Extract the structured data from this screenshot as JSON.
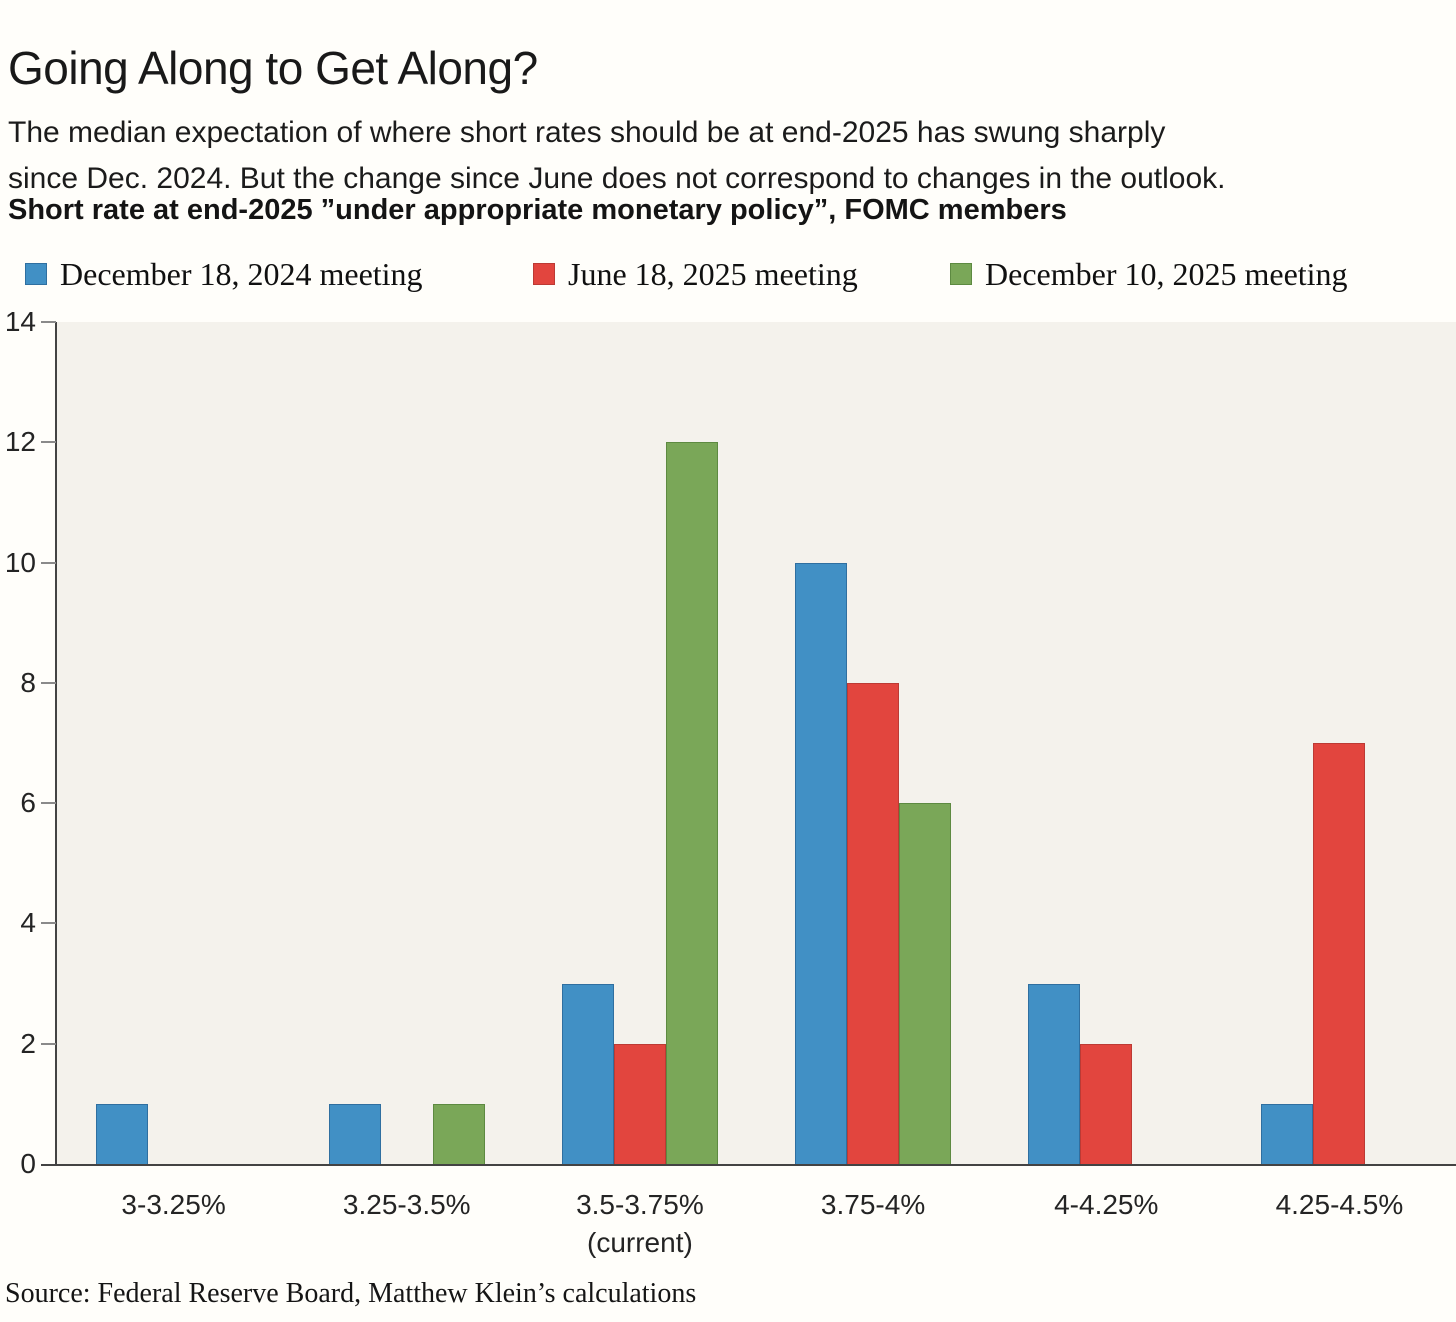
{
  "page": {
    "title": "Going Along to Get Along?",
    "subtitle_line1": "The median expectation of where short rates should be at end-2025 has swung sharply",
    "subtitle_line2": "since Dec. 2024. But the change since June does not correspond to changes in the outlook.",
    "chart_heading": "Short rate at end-2025 ”under appropriate monetary policy”, FOMC members",
    "source": "Source: Federal Reserve Board, Matthew Klein’s calculations"
  },
  "legend": {
    "items": [
      {
        "label": "December 18, 2024 meeting",
        "color": "#4190c5",
        "edge": "#2f6fa0"
      },
      {
        "label": "June 18, 2025 meeting",
        "color": "#e2453e",
        "edge": "#bc3a34"
      },
      {
        "label": "December 10, 2025 meeting",
        "color": "#7aa758",
        "edge": "#5d8a41"
      }
    ]
  },
  "colors": {
    "page_bg": "#fffefa",
    "plot_bg": "#f4f2ec",
    "axis_line": "#434343",
    "tick": "#8a8a8a"
  },
  "chart_data": {
    "type": "bar",
    "title": "Short rate at end-2025 ”under appropriate monetary policy”, FOMC members",
    "categories": [
      {
        "label": "3-3.25%",
        "sublabel": ""
      },
      {
        "label": "3.25-3.5%",
        "sublabel": ""
      },
      {
        "label": "3.5-3.75%",
        "sublabel": "(current)"
      },
      {
        "label": "3.75-4%",
        "sublabel": ""
      },
      {
        "label": "4-4.25%",
        "sublabel": ""
      },
      {
        "label": "4.25-4.5%",
        "sublabel": ""
      }
    ],
    "series": [
      {
        "name": "December 18, 2024 meeting",
        "color": "#4190c5",
        "edge": "#2f6fa0",
        "values": [
          1,
          1,
          3,
          10,
          3,
          1
        ]
      },
      {
        "name": "June 18, 2025 meeting",
        "color": "#e2453e",
        "edge": "#bc3a34",
        "values": [
          0,
          0,
          2,
          8,
          2,
          7
        ]
      },
      {
        "name": "December 10, 2025 meeting",
        "color": "#7aa758",
        "edge": "#5d8a41",
        "values": [
          0,
          1,
          12,
          6,
          0,
          0
        ]
      }
    ],
    "xlabel": "",
    "ylabel": "",
    "ylim": [
      0,
      14
    ],
    "yticks": [
      0,
      2,
      4,
      6,
      8,
      10,
      12,
      14
    ],
    "grid": false,
    "legend_position": "top"
  }
}
